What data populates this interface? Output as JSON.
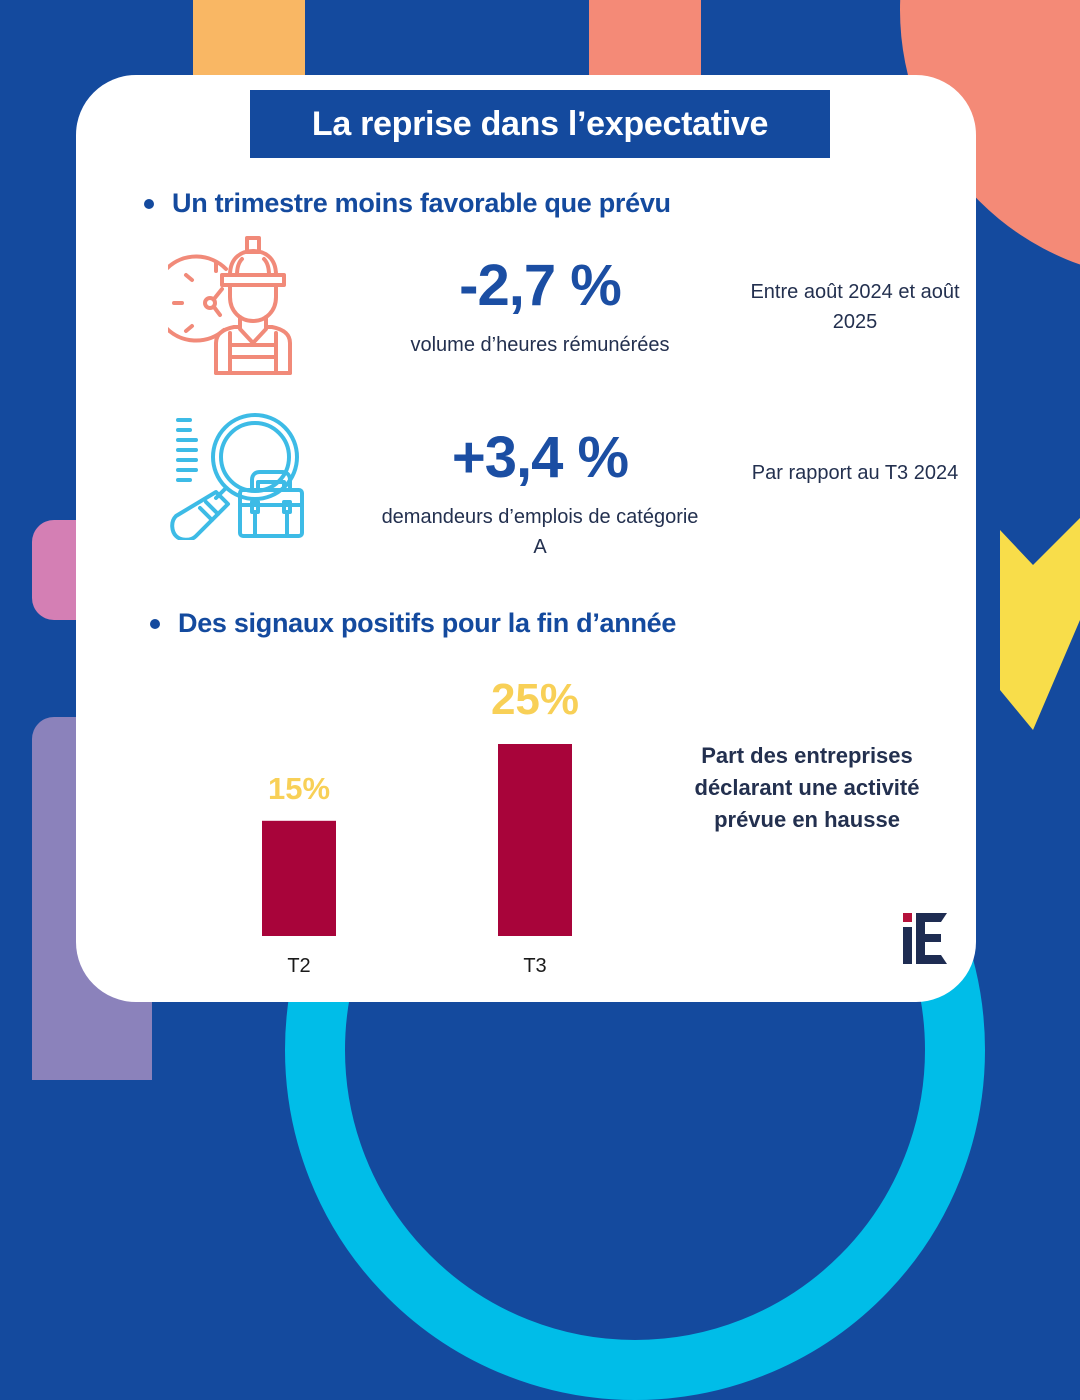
{
  "title": "La reprise dans l’expectative",
  "section1": {
    "heading": "Un trimestre moins favorable que prévu",
    "stats": [
      {
        "icon": "worker-clock-icon",
        "value": "-2,7 %",
        "label": "volume d’heures rémunérées",
        "note": "Entre août 2024 et août 2025"
      },
      {
        "icon": "job-search-icon",
        "value": "+3,4 %",
        "label": "demandeurs d’emplois de catégorie A",
        "note": "Par rapport au T3 2024"
      }
    ]
  },
  "section2": {
    "heading": "Des signaux positifs pour la fin d’année",
    "description": "Part des entreprises déclarant une activité prévue en hausse"
  },
  "chart_data": {
    "type": "bar",
    "title": "",
    "xlabel": "",
    "ylabel": "",
    "categories": [
      "T2",
      "T3"
    ],
    "values": [
      15,
      25
    ],
    "data_labels": [
      "15%",
      "25%"
    ],
    "unit": "%",
    "ylim": [
      0,
      25
    ],
    "grid": false,
    "bar_color": "#a8043a",
    "label_color": "#f8d057"
  },
  "logo": {
    "text": "iE"
  },
  "colors": {
    "background": "#144a9e",
    "accent_blue": "#1b4ea3",
    "text_dark": "#23304f",
    "bar": "#a8043a",
    "data_label": "#f8d057",
    "icon_salmon": "#f18a79",
    "icon_cyan": "#3dbbe6"
  }
}
